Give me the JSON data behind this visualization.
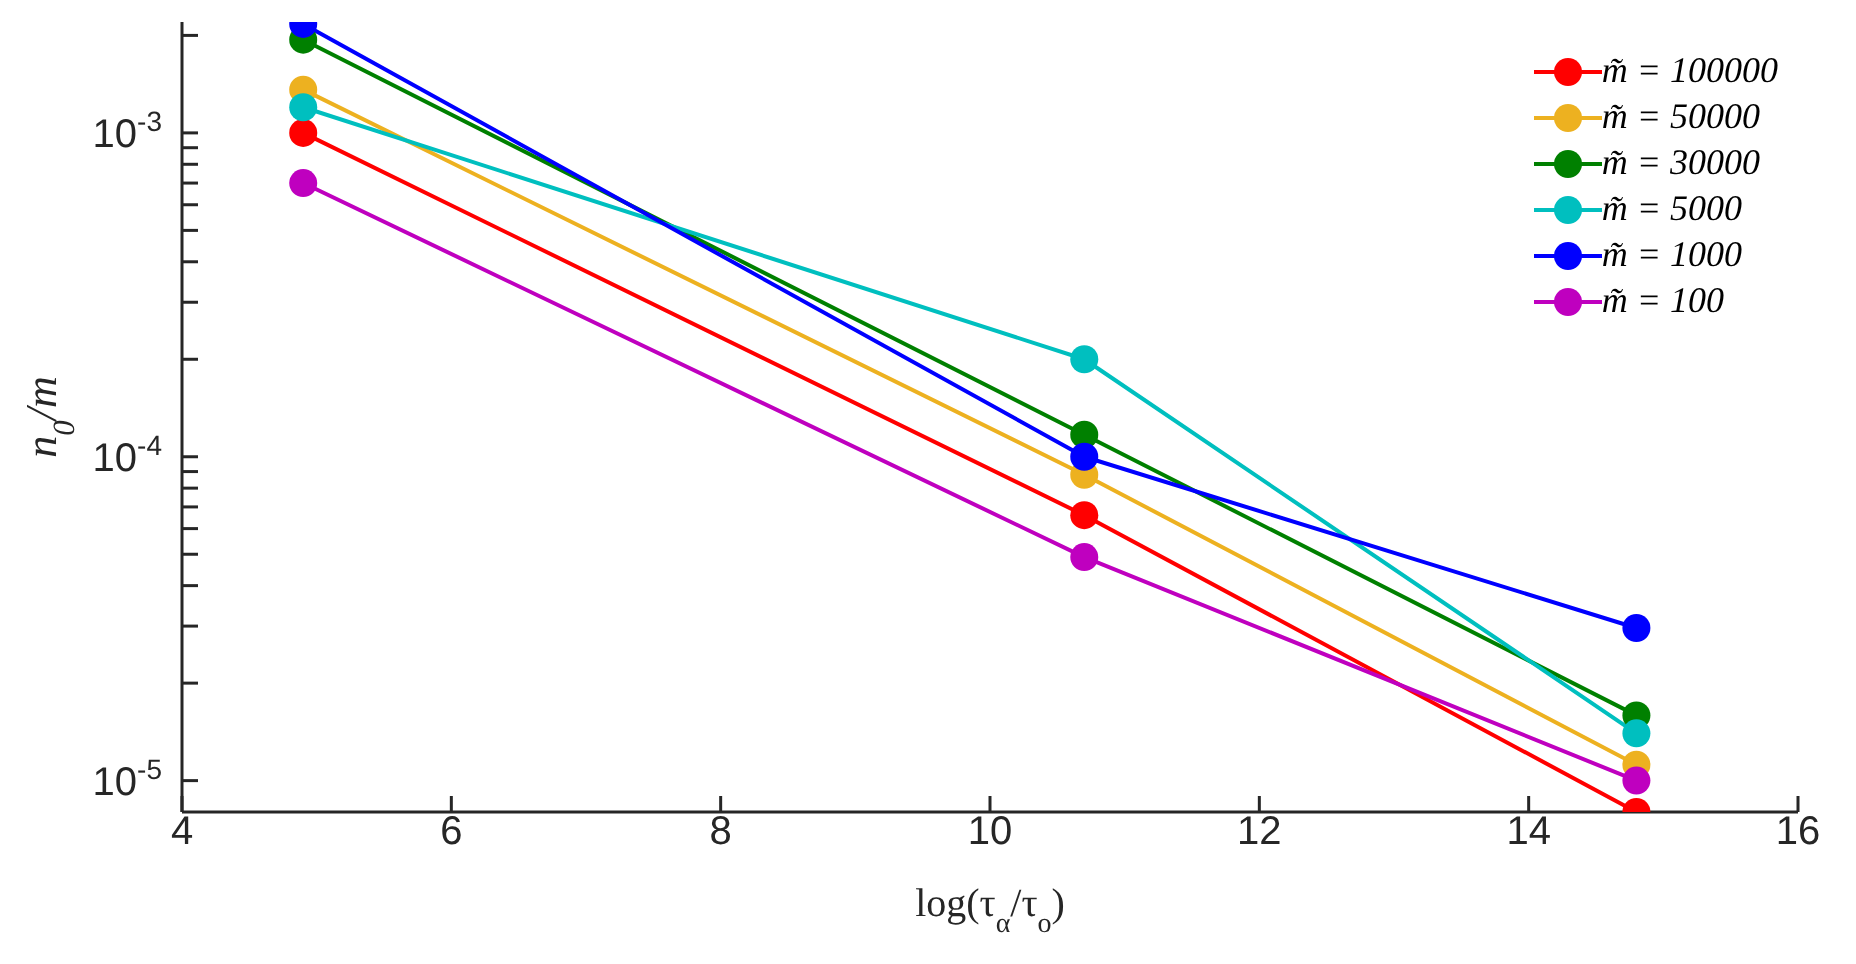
{
  "chart_data": {
    "type": "line",
    "xlabel": "log(τ$_{α}$/τ$_{o}$)",
    "ylabel": "n$_{0}$/m",
    "log": "y",
    "xlim": [
      4,
      16
    ],
    "xticks": [
      4,
      6,
      8,
      10,
      12,
      14,
      16
    ],
    "ylim": [
      8e-06,
      0.0022
    ],
    "yticks": [
      {
        "value": 1e-05,
        "label": "10$^{-5}$"
      },
      {
        "value": 2e-05,
        "label": null
      },
      {
        "value": 3e-05,
        "label": null
      },
      {
        "value": 4e-05,
        "label": null
      },
      {
        "value": 5e-05,
        "label": null
      },
      {
        "value": 6e-05,
        "label": null
      },
      {
        "value": 7e-05,
        "label": null
      },
      {
        "value": 8e-05,
        "label": null
      },
      {
        "value": 9e-05,
        "label": null
      },
      {
        "value": 0.0001,
        "label": "10$^{-4}$"
      },
      {
        "value": 0.0002,
        "label": null
      },
      {
        "value": 0.0003,
        "label": null
      },
      {
        "value": 0.0004,
        "label": null
      },
      {
        "value": 0.0005,
        "label": null
      },
      {
        "value": 0.0006,
        "label": null
      },
      {
        "value": 0.0007,
        "label": null
      },
      {
        "value": 0.0008,
        "label": null
      },
      {
        "value": 0.0009,
        "label": null
      },
      {
        "value": 0.001,
        "label": "10$^{-3}$"
      },
      {
        "value": 0.002,
        "label": null
      }
    ],
    "x": [
      4.9,
      10.7,
      14.8
    ],
    "marker": "circle",
    "line_style": "solid",
    "grid": false,
    "legend": "top right",
    "series": [
      {
        "name": "m̃ = 100000",
        "color": "#ff0000",
        "values": [
          0.001,
          6.6e-05,
          8e-06
        ]
      },
      {
        "name": "m̃ = 50000",
        "color": "#edb120",
        "values": [
          0.00136,
          8.8e-05,
          1.12e-05
        ]
      },
      {
        "name": "m̃ = 30000",
        "color": "#008000",
        "values": [
          0.00194,
          0.000117,
          1.59e-05
        ]
      },
      {
        "name": "m̃ = 5000",
        "color": "#00bfbf",
        "values": [
          0.0012,
          0.0002,
          1.4e-05
        ]
      },
      {
        "name": "m̃ = 1000",
        "color": "#0000ff",
        "values": [
          0.00217,
          0.0001,
          2.96e-05
        ]
      },
      {
        "name": "m̃ = 100",
        "color": "#bf00bf",
        "values": [
          0.0007,
          4.9e-05,
          1e-05
        ]
      }
    ]
  }
}
